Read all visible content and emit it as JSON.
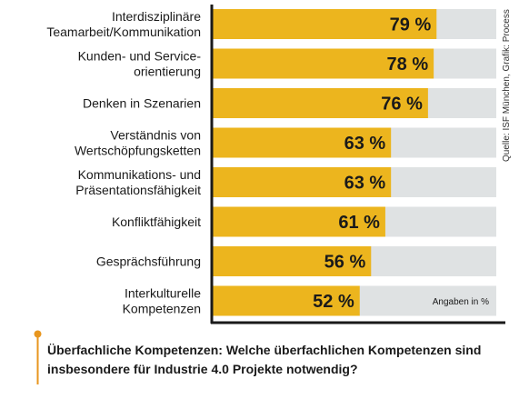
{
  "chart_data": {
    "type": "bar",
    "orientation": "horizontal",
    "categories": [
      [
        "Interdisziplinäre",
        "Teamarbeit/Kommunikation"
      ],
      [
        "Kunden- und Service-",
        "orientierung"
      ],
      [
        "Denken in Szenarien"
      ],
      [
        "Verständnis von",
        "Wertschöpfungsketten"
      ],
      [
        "Kommunikations- und",
        "Präsentationsfähigkeit"
      ],
      [
        "Konfliktfähigkeit"
      ],
      [
        "Gesprächsführung"
      ],
      [
        "Interkulturelle",
        "Kompetenzen"
      ]
    ],
    "values": [
      79,
      78,
      76,
      63,
      63,
      61,
      56,
      52
    ],
    "value_labels": [
      "79 %",
      "78 %",
      "76 %",
      "63 %",
      "63 %",
      "61 %",
      "56 %",
      "52 %"
    ],
    "xlim": [
      0,
      100
    ],
    "unit_note": "Angaben in %",
    "source": "Quelle: ISF München, Grafik: Process",
    "grid": false,
    "colors": {
      "bar": "#ecb51e",
      "track": "#dfe2e3",
      "axis": "#1a1a1a",
      "marker": "#e8961e"
    }
  },
  "caption": "Überfachliche Kompetenzen: Welche überfachlichen Kompetenzen sind insbesondere für Industrie 4.0 Projekte notwendig?"
}
